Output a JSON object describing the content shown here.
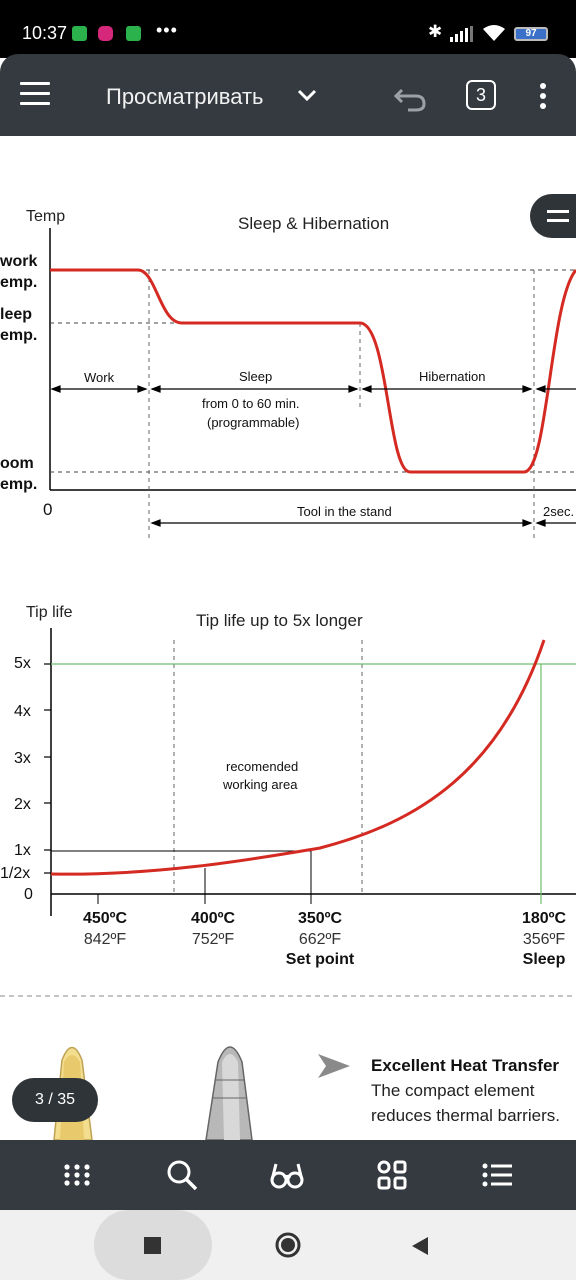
{
  "status_bar": {
    "time": "10:37",
    "battery": "97"
  },
  "toolbar": {
    "title": "Просматривать",
    "page_count": "3"
  },
  "page_indicator": "3 / 35",
  "document": {
    "chart1": {
      "ylabel": "Temp",
      "title": "Sleep & Hibernation",
      "levels": [
        "work",
        "emp.",
        "leep",
        "emp.",
        "oom",
        "emp."
      ],
      "origin": "0",
      "phases": [
        "Work",
        "Sleep",
        "Hibernation"
      ],
      "sleep_note_1": "from 0 to 60 min.",
      "sleep_note_2": "(programmable)",
      "stand_label": "Tool in the stand",
      "wake_label": "2sec."
    },
    "chart2": {
      "ylabel": "Tip life",
      "title": "Tip life up to 5x longer",
      "yticks": [
        "5x",
        "4x",
        "3x",
        "2x",
        "1x",
        "1/2x",
        "0"
      ],
      "area_1": "recomended",
      "area_2": "working area",
      "xticks": [
        {
          "c": "450ºC",
          "f": "842ºF",
          "note": ""
        },
        {
          "c": "400ºC",
          "f": "752ºF",
          "note": ""
        },
        {
          "c": "350ºC",
          "f": "662ºF",
          "note": "Set point"
        },
        {
          "c": "180ºC",
          "f": "356ºF",
          "note": "Sleep"
        }
      ]
    },
    "feature": {
      "heading": "Excellent Heat Transfer",
      "line1": "The compact element",
      "line2": "reduces thermal barriers."
    }
  },
  "chart_data": [
    {
      "type": "line",
      "title": "Sleep & Hibernation",
      "ylabel": "Temp",
      "categories": [
        "Work",
        "Sleep",
        "Hibernation"
      ],
      "series": []
    },
    {
      "type": "line",
      "title": "Tip life up to 5x longer",
      "ylabel": "Tip life",
      "categories": [
        "450ºC",
        "400ºC",
        "350ºC",
        "180ºC"
      ],
      "series": [
        {
          "values": [
            0.5,
            0.72,
            1,
            5
          ]
        }
      ]
    }
  ],
  "colors": {
    "curve": "#d42a22",
    "green_line": "#6fbf6f",
    "bar": "#343a40",
    "status_bg": "#000000"
  }
}
